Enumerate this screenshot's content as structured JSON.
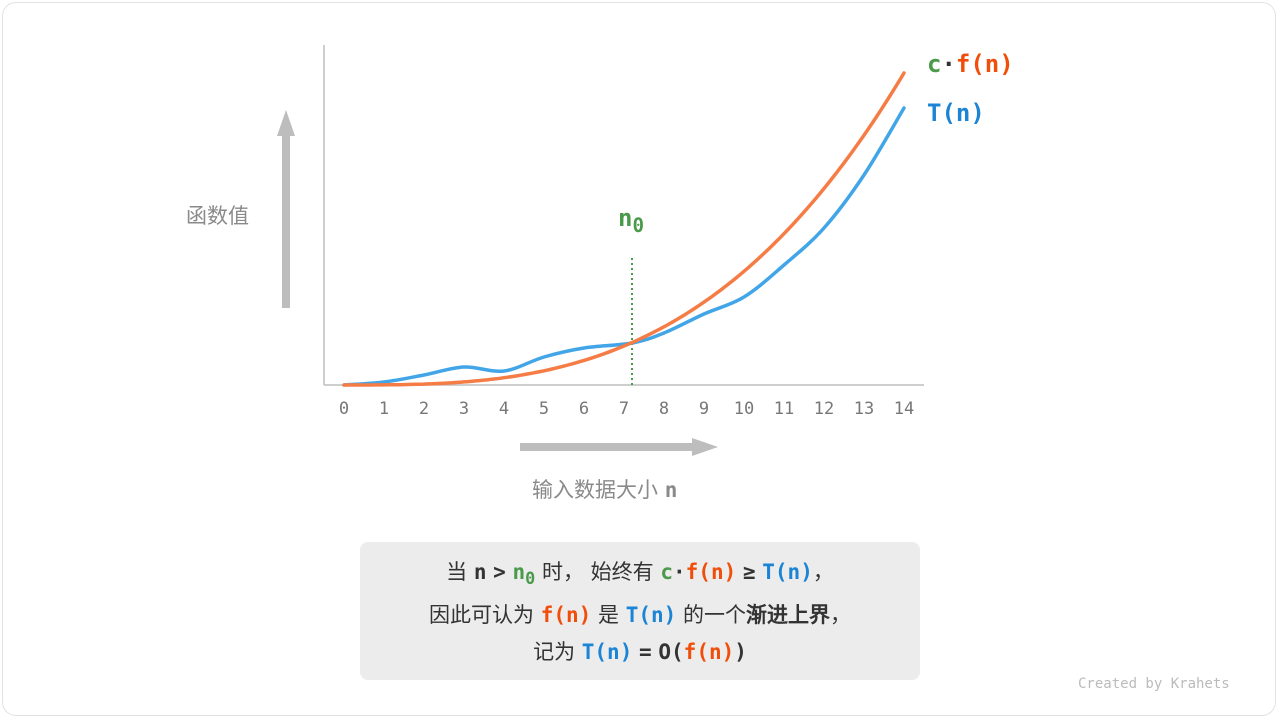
{
  "axes": {
    "y_label": "函数值",
    "x_label": "输入数据大小",
    "x_var": "n",
    "x_ticks": [
      "0",
      "1",
      "2",
      "3",
      "4",
      "5",
      "6",
      "7",
      "8",
      "9",
      "10",
      "11",
      "12",
      "13",
      "14"
    ]
  },
  "curves": {
    "upper": {
      "c": "c",
      "dot": "·",
      "f": "f(n)",
      "color": "#f57c45"
    },
    "lower": {
      "label": "T(n)",
      "color": "#42a5e8"
    }
  },
  "marker": {
    "label": "n",
    "sub": "0",
    "color": "#4b9a4b"
  },
  "caption": {
    "l1_a": "当",
    "l1_n": "n",
    "l1_gt": ">",
    "l1_n0": "n",
    "l1_n0_sub": "0",
    "l1_b": "时，  始终有",
    "l1_c": "c",
    "l1_dot": "·",
    "l1_f": "f(n)",
    "l1_ge": "≥",
    "l1_T": "T(n)",
    "l1_comma": "，",
    "l2_a": "因此可认为",
    "l2_f": "f(n)",
    "l2_b": "是",
    "l2_T": "T(n)",
    "l2_c": "的一个",
    "l2_bold": "渐进上界",
    "l2_comma": "，",
    "l3_a": "记为",
    "l3_T": "T(n)",
    "l3_eq": "=",
    "l3_O": "O(",
    "l3_f": "f(n)",
    "l3_close": ")"
  },
  "credit": "Created by Krahets"
}
